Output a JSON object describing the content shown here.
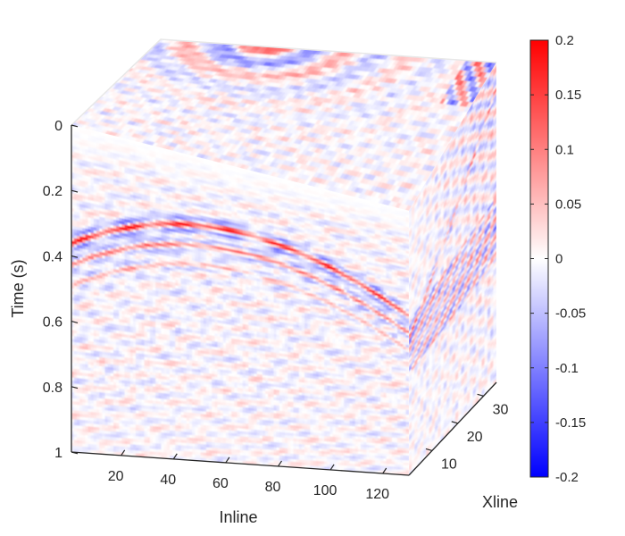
{
  "chart_data": {
    "type": "heatmap",
    "subtype": "3d-seismic-cube",
    "title": "",
    "xlabel": "Inline",
    "ylabel": "Time (s)",
    "zlabel": "Xline",
    "inline_ticks": [
      "20",
      "40",
      "60",
      "80",
      "100",
      "120"
    ],
    "xline_ticks": [
      "10",
      "20",
      "30"
    ],
    "time_ticks": [
      "0",
      "0.2",
      "0.4",
      "0.6",
      "0.8",
      "1"
    ],
    "inline_range": [
      1,
      130
    ],
    "xline_range": [
      1,
      35
    ],
    "time_range": [
      0,
      1
    ],
    "colorbar": {
      "ticks": [
        "0.2",
        "0.15",
        "0.1",
        "0.05",
        "0",
        "-0.05",
        "-0.1",
        "-0.15",
        "-0.2"
      ],
      "range": [
        -0.2,
        0.2
      ],
      "colors": {
        "max": "#ff0000",
        "mid": "#ffffff",
        "min": "#0000ff"
      }
    },
    "events": [
      {
        "label": "hyperbolic reflection",
        "apex_inline": 62,
        "apex_time": 0.22
      }
    ]
  }
}
